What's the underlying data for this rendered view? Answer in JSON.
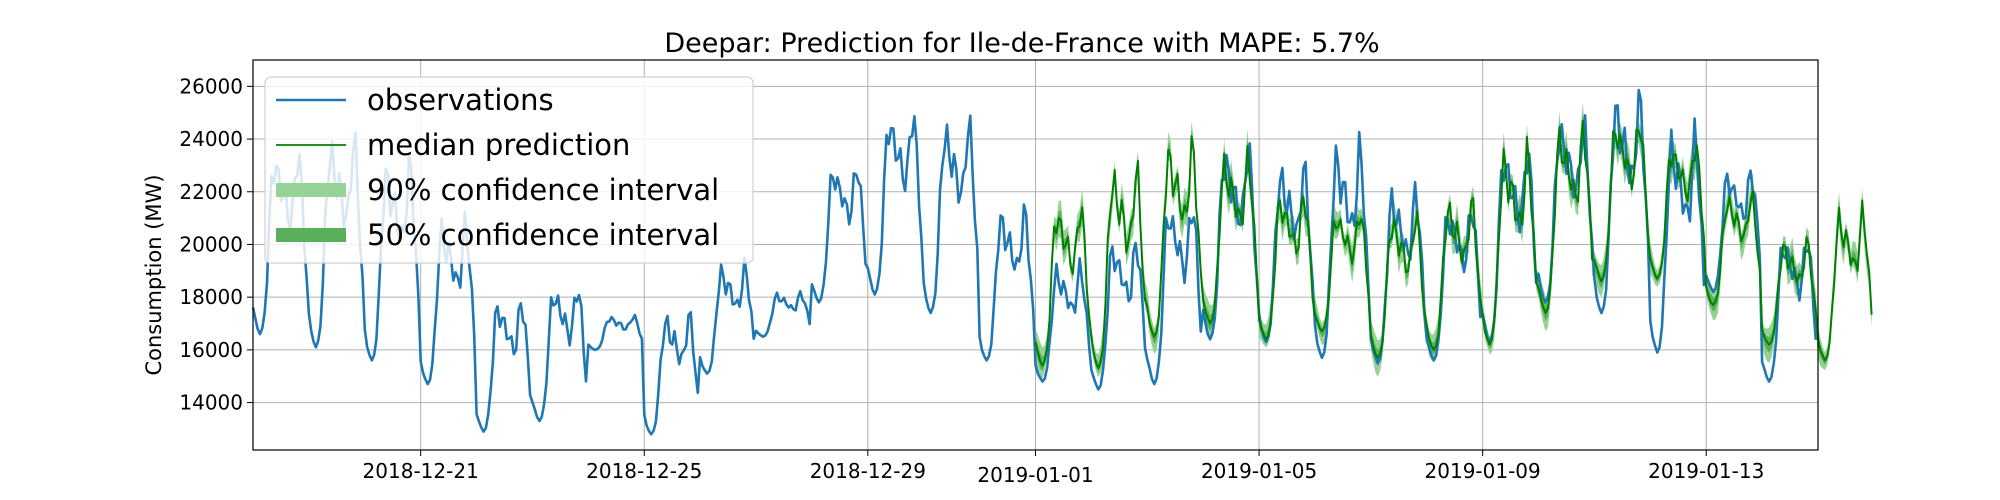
{
  "chart_data": {
    "type": "line",
    "title": "Deepar: Prediction for Ile-de-France with MAPE: 5.7%",
    "ylabel": "Consumption (MW)",
    "xlabel": "",
    "x_range": [
      "2018-12-18T00:00",
      "2019-01-15T00:00"
    ],
    "ylim": [
      12200,
      27000
    ],
    "grid": true,
    "legend_position": "top-left",
    "x_ticks": [
      "2018-12-21",
      "2018-12-25",
      "2018-12-29",
      "2019-01-01",
      "2019-01-05",
      "2019-01-09",
      "2019-01-13"
    ],
    "y_ticks": [
      14000,
      16000,
      18000,
      20000,
      22000,
      24000,
      26000
    ],
    "forecast_start": "2019-01-01T00:00",
    "daily_min": [
      16600,
      16100,
      15600,
      14700,
      12900,
      13300,
      16000,
      12800,
      15100,
      16500,
      17800,
      18100,
      17400,
      15600,
      14800,
      14500,
      14700,
      16400,
      16300,
      15700,
      15500,
      15600,
      16300,
      17800,
      17400,
      15900,
      18200,
      14800
    ],
    "daily_max": [
      24100,
      24600,
      23600,
      21300,
      18300,
      18900,
      17400,
      17700,
      19500,
      18300,
      23500,
      25600,
      25200,
      21700,
      19500,
      20600,
      22200,
      24300,
      23500,
      24300,
      22600,
      22000,
      24300,
      25200,
      26200,
      24800,
      23200,
      20800
    ],
    "median_daily_min": [
      15400,
      15300,
      16500,
      17000,
      16400,
      16700,
      15700,
      16000,
      16200,
      17400,
      18600,
      18700,
      17700,
      16200,
      15600
    ],
    "median_daily_max": [
      22000,
      23500,
      24300,
      23800,
      22400,
      21700,
      21600,
      22100,
      24100,
      25000,
      25300,
      24300,
      22200,
      20400,
      21700
    ],
    "series": [
      {
        "name": "observations",
        "color": "#1f77b4",
        "kind": "line"
      },
      {
        "name": "median prediction",
        "color": "#008000",
        "kind": "line"
      },
      {
        "name": "90% confidence interval",
        "color": "#96d296",
        "kind": "band"
      },
      {
        "name": "50% confidence interval",
        "color": "#5aaf5a",
        "kind": "band"
      }
    ]
  }
}
